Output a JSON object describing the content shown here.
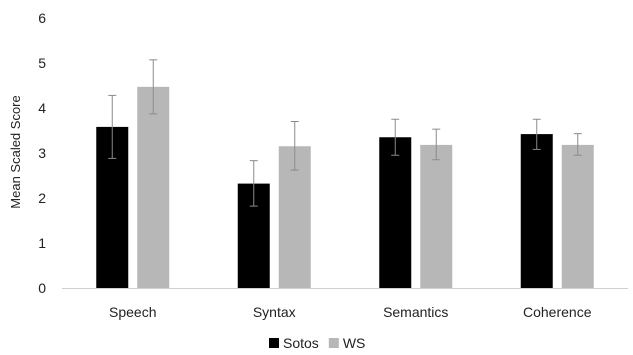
{
  "chart_data": {
    "type": "bar",
    "title": "",
    "xlabel": "",
    "ylabel": "Mean Scaled Score",
    "ylim": [
      0,
      6
    ],
    "yticks": [
      0,
      1,
      2,
      3,
      4,
      5,
      6
    ],
    "grid": false,
    "legend_position": "bottom",
    "categories": [
      "Speech",
      "Syntax",
      "Semantics",
      "Coherence"
    ],
    "series": [
      {
        "name": "Sotos",
        "color": "#000000",
        "values": [
          3.58,
          2.32,
          3.35,
          3.42
        ],
        "error_low": [
          2.88,
          1.82,
          2.95,
          3.08
        ],
        "error_high": [
          4.28,
          2.83,
          3.75,
          3.75
        ]
      },
      {
        "name": "WS",
        "color": "#b7b7b7",
        "values": [
          4.47,
          3.15,
          3.18,
          3.18
        ],
        "error_low": [
          3.87,
          2.62,
          2.85,
          2.95
        ],
        "error_high": [
          5.07,
          3.7,
          3.53,
          3.43
        ]
      }
    ]
  }
}
